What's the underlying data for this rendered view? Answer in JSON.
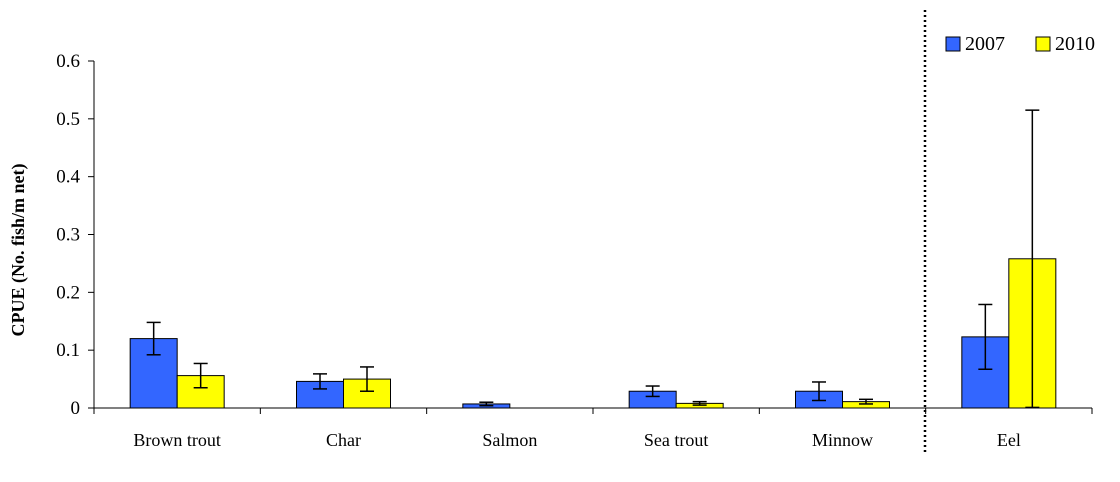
{
  "chart_data": {
    "type": "bar",
    "title": "",
    "xlabel": "",
    "ylabel": "CPUE (No. fish/m net)",
    "ylim": [
      0,
      0.6
    ],
    "yticks": [
      "0",
      "0.1",
      "0.2",
      "0.3",
      "0.4",
      "0.5",
      "0.6"
    ],
    "categories": [
      "Brown trout",
      "Char",
      "Salmon",
      "Sea trout",
      "Minnow",
      "Eel"
    ],
    "series": [
      {
        "name": "2007",
        "color": "#3366FF",
        "values": [
          0.12,
          0.046,
          0.007,
          0.029,
          0.029,
          0.123
        ],
        "errors": [
          0.028,
          0.013,
          0.003,
          0.009,
          0.016,
          0.056
        ]
      },
      {
        "name": "2010",
        "color": "#FFFF00",
        "values": [
          0.056,
          0.05,
          null,
          0.008,
          0.011,
          0.258
        ],
        "errors": [
          0.021,
          0.021,
          null,
          0.003,
          0.004,
          0.257
        ]
      }
    ],
    "grid": false,
    "legend": "top-right",
    "separator": "dotted vertical line between Minnow and Eel"
  }
}
